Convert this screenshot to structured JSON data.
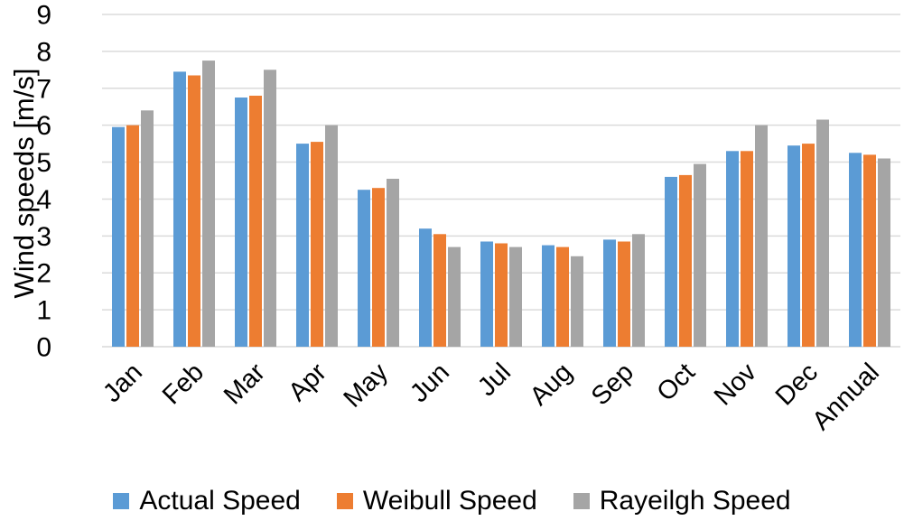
{
  "chart_data": {
    "type": "bar",
    "title": "",
    "ylabel": "Wind speeds [m/s]",
    "xlabel": "",
    "ylim": [
      0,
      9
    ],
    "ytick_interval": 1,
    "ytick_labels": [
      "0",
      "1",
      "2",
      "3",
      "4",
      "5",
      "6",
      "7",
      "8",
      "9"
    ],
    "grid": "horizontal-only",
    "legend_position": "bottom",
    "x_label_rotation_deg": -45,
    "categories": [
      "Jan",
      "Feb",
      "Mar",
      "Apr",
      "May",
      "Jun",
      "Jul",
      "Aug",
      "Sep",
      "Oct",
      "Nov",
      "Dec",
      "Annual"
    ],
    "series": [
      {
        "name": "Actual Speed",
        "color": "#5B9BD5",
        "values": [
          5.95,
          7.45,
          6.75,
          5.5,
          4.25,
          3.2,
          2.85,
          2.75,
          2.9,
          4.6,
          5.3,
          5.45,
          5.25
        ]
      },
      {
        "name": "Weibull Speed",
        "color": "#ED7D31",
        "values": [
          6.0,
          7.35,
          6.8,
          5.55,
          4.3,
          3.05,
          2.8,
          2.7,
          2.85,
          4.65,
          5.3,
          5.5,
          5.2
        ]
      },
      {
        "name": "Rayeilgh Speed",
        "color": "#A5A5A5",
        "values": [
          6.4,
          7.75,
          7.5,
          6.0,
          4.55,
          2.7,
          2.7,
          2.45,
          3.05,
          4.95,
          6.0,
          6.15,
          5.1
        ]
      }
    ],
    "colors": {
      "gridline": "#DBDBDB",
      "axis_line": "#D9D9D9",
      "text": "#000000",
      "background": "#FFFFFF"
    }
  }
}
